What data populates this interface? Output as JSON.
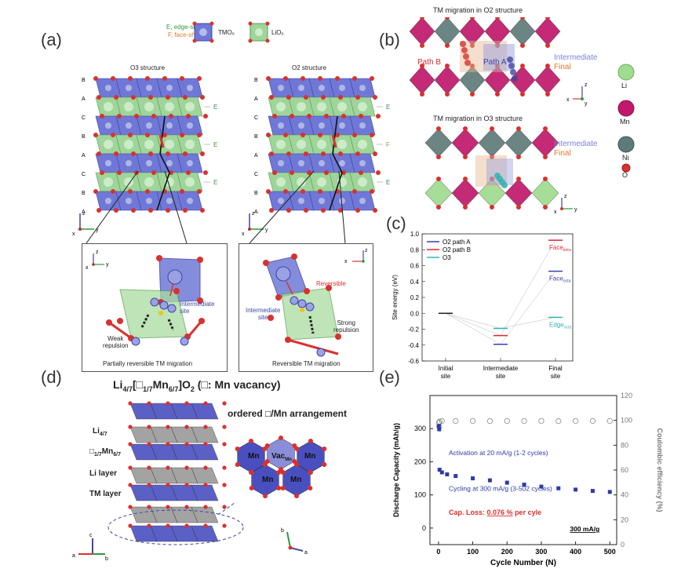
{
  "panel_labels": {
    "a": "(a)",
    "b": "(b)",
    "c": "(c)",
    "d": "(d)",
    "e": "(e)"
  },
  "panel_a": {
    "legend": {
      "edge": "E, edge-share",
      "face": "F, face-share",
      "tmo6": "TMO₆",
      "lio6": "LiO₆"
    },
    "o3": {
      "title": "O3 structure",
      "stack": [
        "B",
        "A",
        "C",
        "B",
        "A",
        "C",
        "B",
        "A"
      ],
      "shares": [
        "E",
        "E",
        "E",
        "E",
        "E",
        "E"
      ]
    },
    "o2": {
      "title": "O2 structure",
      "stack": [
        "B",
        "A",
        "C",
        "B",
        "A",
        "C",
        "B",
        "A"
      ],
      "shares": [
        "E",
        "F",
        "E",
        "F",
        "E",
        "E"
      ]
    },
    "left_inset": {
      "caption": "Partially reversible TM migration",
      "site": "Intermediate\nsite",
      "repulsion": "Weak\nrepulsion"
    },
    "right_inset": {
      "caption": "Reversible TM migration",
      "site": "Intermediate\nsite",
      "reversible": "Reversible",
      "repulsion": "Strong\nrepulsion"
    },
    "axes": {
      "z": "z",
      "x": "x",
      "y": "y"
    }
  },
  "panel_b": {
    "o2_title": "TM migration in O2 structure",
    "o3_title": "TM migration in O3 structure",
    "path_b": "Path B",
    "path_a": "Path A",
    "intermediate": "Intermediate",
    "final": "Final",
    "legend": [
      "Li",
      "Mn",
      "Ni",
      "O"
    ],
    "colors": {
      "li": "#9fdc8f",
      "mn": "#c0186a",
      "ni": "#5f7a7a",
      "o": "#d9312e"
    }
  },
  "panel_d": {
    "formula_prefix": "Li",
    "formula_sub1": "4/7",
    "formula_mid": "[□",
    "formula_sub2": "1/7",
    "formula_mn": "Mn",
    "formula_sub3": "6/7",
    "formula_tail": "]O",
    "formula_sub4": "2",
    "formula_note": " (□: Mn vacancy)",
    "layer_li47": "Li",
    "layer_li47_sub": "4/7",
    "layer_vac": "□",
    "layer_vac_sub": "1/7",
    "layer_vac_mn": "Mn",
    "layer_vac_mn_sub": "6/7",
    "layer_li": "Li layer",
    "layer_tm": "TM layer",
    "ordered_title": "ordered □/Mn arrangement",
    "cells": [
      "Mn",
      "Vac",
      "Mn",
      "Mn",
      "Mn"
    ],
    "vac_sub": "Mn",
    "axes": {
      "c": "c",
      "a": "a",
      "b": "b"
    }
  },
  "chart_data": [
    {
      "type": "line",
      "id": "panel-c",
      "ylabel": "Site energy (eV)",
      "categories": [
        "Initial\nsite",
        "Intermediate\nsite",
        "Final\nsite"
      ],
      "ylim": [
        -0.6,
        1.0
      ],
      "yticks": [
        -0.6,
        -0.4,
        -0.2,
        0.0,
        0.2,
        0.4,
        0.6,
        0.8,
        1.0
      ],
      "legend_position": "top-left",
      "series": [
        {
          "name": "O2 path A",
          "color": "#3a3fb0",
          "values": [
            0.0,
            -0.39,
            0.53
          ]
        },
        {
          "name": "O2 path B",
          "color": "#e0262c",
          "values": [
            0.0,
            -0.28,
            0.92
          ]
        },
        {
          "name": "O3",
          "color": "#33b3b3",
          "values": [
            0.0,
            -0.19,
            -0.05
          ]
        }
      ],
      "annotations": [
        {
          "text": "Face",
          "sub": "tetra",
          "color": "#e0262c",
          "y": 0.92
        },
        {
          "text": "Face",
          "sub": "octa",
          "color": "#3a3fb0",
          "y": 0.53
        },
        {
          "text": "Edge",
          "sub": "octa",
          "color": "#33b3b3",
          "y": -0.05
        }
      ]
    },
    {
      "type": "scatter",
      "id": "panel-e",
      "xlabel": "Cycle Number (N)",
      "ylabel": "Discharge Capacity (mAh/g)",
      "y2label": "Coulombic efficiency (%)",
      "xlim": [
        -25,
        520
      ],
      "xticks": [
        0,
        100,
        200,
        300,
        400,
        500
      ],
      "ylim": [
        -50,
        400
      ],
      "yticks": [
        0,
        100,
        200,
        300
      ],
      "y2lim": [
        0,
        120
      ],
      "y2ticks": [
        0,
        20,
        40,
        60,
        80,
        100,
        120
      ],
      "series": [
        {
          "name": "Discharge capacity",
          "color": "#2d3aa8",
          "x": [
            1,
            2,
            3,
            10,
            25,
            50,
            100,
            150,
            200,
            250,
            300,
            350,
            400,
            450,
            500
          ],
          "y": [
            308,
            298,
            176,
            168,
            162,
            157,
            150,
            144,
            137,
            131,
            125,
            120,
            116,
            112,
            109
          ]
        },
        {
          "name": "Coulombic efficiency",
          "color": "#888888",
          "x": [
            1,
            2,
            3,
            10,
            50,
            100,
            150,
            200,
            250,
            300,
            350,
            400,
            450,
            500
          ],
          "y": [
            98,
            95,
            99,
            99.5,
            99.5,
            99.6,
            99.4,
            99.6,
            99.5,
            99.6,
            99.4,
            99.5,
            99.6,
            99.5
          ]
        }
      ],
      "annotations": {
        "activation": "Activation at 20 mA/g (1-2 cycles)",
        "cycling": "Cycling at 300 mA/g (3-502 cycles)",
        "cap_loss_prefix": "Cap. Loss: ",
        "cap_loss_value": "0.076 %",
        "cap_loss_suffix": " per cyle",
        "rate": "300 mA/g"
      }
    }
  ]
}
